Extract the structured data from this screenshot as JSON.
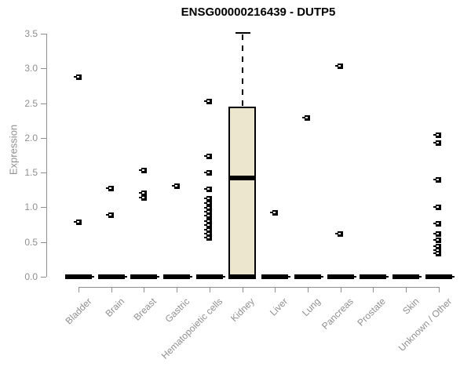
{
  "chart_data": {
    "type": "boxplot",
    "title": "ENSG00000216439 - DUTP5",
    "ylabel": "Expression",
    "ylim": [
      0,
      3.5
    ],
    "yticks": [
      "0.0",
      "0.5",
      "1.0",
      "1.5",
      "2.0",
      "2.5",
      "3.0",
      "3.5"
    ],
    "grid": false,
    "legend": false,
    "categories": [
      "Bladder",
      "Brain",
      "Breast",
      "Gastric",
      "Hematopoietic cells",
      "Kidney",
      "Liver",
      "Lung",
      "Pancreas",
      "Prostate",
      "Skin",
      "Unknown / Other"
    ],
    "groups": [
      {
        "label": "Bladder",
        "box": {
          "q1": 0,
          "median": 0,
          "q3": 0,
          "whisker_low": 0,
          "whisker_high": 0
        },
        "points": [
          2.87,
          0.78
        ]
      },
      {
        "label": "Brain",
        "box": {
          "q1": 0,
          "median": 0,
          "q3": 0,
          "whisker_low": 0,
          "whisker_high": 0
        },
        "points": [
          1.27,
          0.89
        ]
      },
      {
        "label": "Breast",
        "box": {
          "q1": 0,
          "median": 0,
          "q3": 0,
          "whisker_low": 0,
          "whisker_high": 0
        },
        "points": [
          1.53,
          1.2,
          1.14
        ]
      },
      {
        "label": "Gastric",
        "box": {
          "q1": 0,
          "median": 0,
          "q3": 0,
          "whisker_low": 0,
          "whisker_high": 0
        },
        "points": [
          1.3
        ]
      },
      {
        "label": "Hematopoietic cells",
        "box": {
          "q1": 0,
          "median": 0,
          "q3": 0,
          "whisker_low": 0,
          "whisker_high": 0
        },
        "points": [
          2.52,
          1.73,
          1.5,
          1.26,
          1.12,
          1.06,
          0.99,
          0.93,
          0.87,
          0.8,
          0.74,
          0.67,
          0.61,
          0.56
        ]
      },
      {
        "label": "Kidney",
        "box": {
          "q1": 0.02,
          "median": 1.42,
          "q3": 2.45,
          "whisker_low": 0.02,
          "whisker_high": 3.5
        },
        "points": []
      },
      {
        "label": "Liver",
        "box": {
          "q1": 0,
          "median": 0,
          "q3": 0,
          "whisker_low": 0,
          "whisker_high": 0
        },
        "points": [
          0.92
        ]
      },
      {
        "label": "Lung",
        "box": {
          "q1": 0,
          "median": 0,
          "q3": 0,
          "whisker_low": 0,
          "whisker_high": 0
        },
        "points": [
          2.29
        ]
      },
      {
        "label": "Pancreas",
        "box": {
          "q1": 0,
          "median": 0,
          "q3": 0,
          "whisker_low": 0,
          "whisker_high": 0
        },
        "points": [
          3.03,
          0.61
        ]
      },
      {
        "label": "Prostate",
        "box": {
          "q1": 0,
          "median": 0,
          "q3": 0,
          "whisker_low": 0,
          "whisker_high": 0
        },
        "points": []
      },
      {
        "label": "Skin",
        "box": {
          "q1": 0,
          "median": 0,
          "q3": 0,
          "whisker_low": 0,
          "whisker_high": 0
        },
        "points": []
      },
      {
        "label": "Unknown / Other",
        "box": {
          "q1": 0,
          "median": 0,
          "q3": 0,
          "whisker_low": 0,
          "whisker_high": 0
        },
        "points": [
          2.04,
          1.92,
          1.4,
          1.0,
          0.76,
          0.62,
          0.53,
          0.43,
          0.38,
          0.33
        ]
      }
    ],
    "colors": {
      "box_fill": "#ebe6cd",
      "box_border": "#000000",
      "marker": "#000000",
      "axis": "#8f8f8f",
      "text_muted": "#8f8f8f",
      "title_text": "#000000",
      "background": "#ffffff"
    }
  }
}
